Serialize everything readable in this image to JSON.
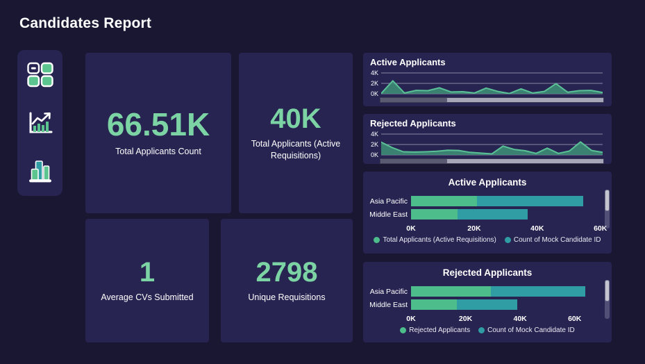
{
  "page": {
    "title": "Candidates Report",
    "colors": {
      "background": "#191732",
      "card": "#272451",
      "accent_green": "#7cd4a4",
      "bar_green": "#4dbd8c",
      "bar_teal": "#2f9da3",
      "spark_line": "#5ac197",
      "spark_fill": "rgba(62,140,118,0.9)"
    }
  },
  "sidebar": {
    "items": [
      {
        "icon": "grid-dashboard-icon"
      },
      {
        "icon": "line-chart-icon"
      },
      {
        "icon": "bar-chart-icon"
      }
    ]
  },
  "kpis": [
    {
      "value": "66.51K",
      "label": "Total Applicants Count"
    },
    {
      "value": "40K",
      "label": "Total Applicants (Active Requisitions)"
    },
    {
      "value": "1",
      "label": "Average CVs Submitted"
    },
    {
      "value": "2798",
      "label": "Unique Requisitions"
    }
  ],
  "chart_data": [
    {
      "type": "area",
      "title": "Active Applicants",
      "y_ticks": [
        "4K",
        "2K",
        "0K"
      ],
      "ylim": [
        0,
        4
      ],
      "unit": "K",
      "grid": true,
      "values": [
        0.05,
        2.5,
        0.15,
        0.65,
        0.6,
        1.15,
        0.35,
        0.4,
        0.15,
        1.1,
        0.45,
        0.05,
        0.95,
        0.15,
        0.45,
        1.95,
        0.3,
        0.6,
        0.65,
        0.25
      ],
      "scrollbar": {
        "thumb_start": 0,
        "thumb_size": 0.3
      }
    },
    {
      "type": "area",
      "title": "Rejected Applicants",
      "y_ticks": [
        "4K",
        "2K",
        "0K"
      ],
      "ylim": [
        0,
        4
      ],
      "unit": "K",
      "grid": true,
      "values": [
        2.45,
        1.4,
        0.6,
        0.55,
        0.6,
        0.7,
        0.9,
        0.85,
        0.5,
        0.35,
        0.2,
        1.7,
        1.05,
        0.8,
        0.3,
        1.3,
        0.3,
        0.75,
        2.5,
        0.85,
        0.5
      ],
      "scrollbar": {
        "thumb_start": 0,
        "thumb_size": 0.3
      }
    },
    {
      "type": "bar",
      "title": "Active Applicants",
      "orientation": "horizontal-stacked",
      "categories": [
        "Asia Pacific",
        "Middle East"
      ],
      "series": [
        {
          "name": "Total Applicants (Active Requisitions)",
          "color": "#4dbd8c",
          "values_k": [
            20.8,
            14.8
          ]
        },
        {
          "name": "Count of Mock Candidate ID",
          "color": "#2f9da3",
          "values_k": [
            33.7,
            22.2
          ]
        }
      ],
      "x_ticks": [
        {
          "label": "0K",
          "value": 0
        },
        {
          "label": "20K",
          "value": 20
        },
        {
          "label": "40K",
          "value": 40
        },
        {
          "label": "60K",
          "value": 60
        }
      ],
      "xmax_k": 60.5,
      "legend_position": "bottom-center"
    },
    {
      "type": "bar",
      "title": "Rejected Applicants",
      "orientation": "horizontal-stacked",
      "categories": [
        "Asia Pacific",
        "Middle East"
      ],
      "series": [
        {
          "name": "Rejected Applicants",
          "color": "#4dbd8c",
          "values_k": [
            29.2,
            16.7
          ]
        },
        {
          "name": "Count of Mock Candidate ID",
          "color": "#2f9da3",
          "values_k": [
            34.6,
            22.3
          ]
        }
      ],
      "x_ticks": [
        {
          "label": "0K",
          "value": 0
        },
        {
          "label": "20K",
          "value": 20
        },
        {
          "label": "40K",
          "value": 40
        },
        {
          "label": "60K",
          "value": 60
        }
      ],
      "xmax_k": 70,
      "legend_position": "bottom-center"
    }
  ]
}
